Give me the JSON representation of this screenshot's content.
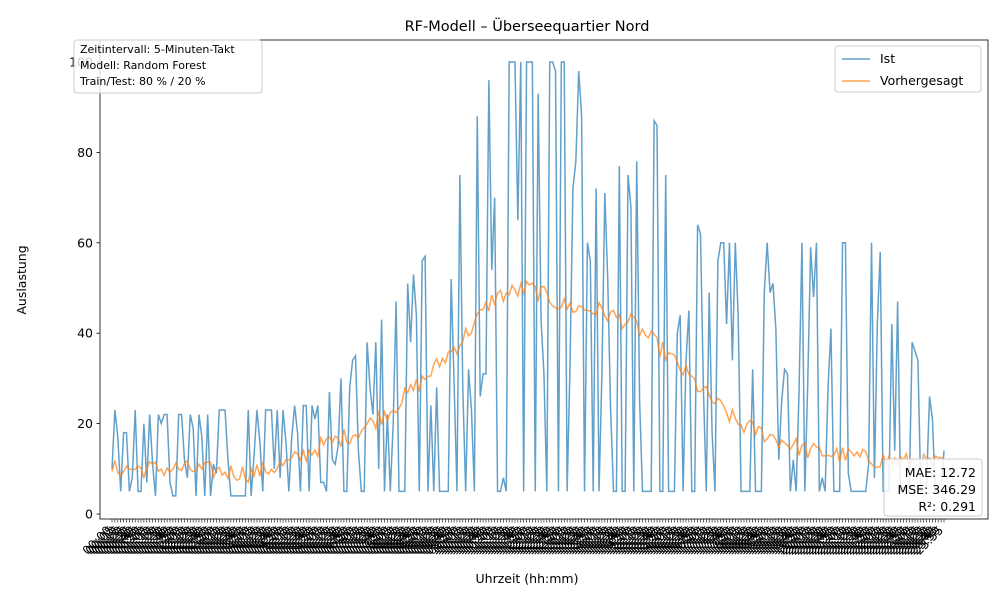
{
  "chart_data": {
    "type": "line",
    "title": "RF-Modell – Überseequartier Nord",
    "xlabel": "Uhrzeit (hh:mm)",
    "ylabel": "Auslastung",
    "ylim": [
      -1,
      105
    ],
    "yticks": [
      0,
      20,
      40,
      60,
      80,
      100
    ],
    "x_start": "00:00",
    "x_end": "23:55",
    "x_step_minutes": 5,
    "x_tick_labels_rotated_deg": 45,
    "grid": false,
    "legend_position": "top-right",
    "series": [
      {
        "name": "Ist",
        "color": "#1f77b4",
        "opacity": 0.7,
        "profile_points": [
          {
            "hour": 0,
            "low": 5,
            "high": 23
          },
          {
            "hour": 2,
            "low": 4,
            "high": 22
          },
          {
            "hour": 4,
            "low": 4,
            "high": 23
          },
          {
            "hour": 6,
            "low": 5,
            "high": 24
          },
          {
            "hour": 7,
            "low": 5,
            "high": 35
          },
          {
            "hour": 8,
            "low": 5,
            "high": 45
          },
          {
            "hour": 9,
            "low": 5,
            "high": 57
          },
          {
            "hour": 10,
            "low": 5,
            "high": 75
          },
          {
            "hour": 11,
            "low": 5,
            "high": 100
          },
          {
            "hour": 12,
            "low": 5,
            "high": 100
          },
          {
            "hour": 13,
            "low": 5,
            "high": 100
          },
          {
            "hour": 14,
            "low": 5,
            "high": 95
          },
          {
            "hour": 15,
            "low": 5,
            "high": 95
          },
          {
            "hour": 16,
            "low": 5,
            "high": 81
          },
          {
            "hour": 17,
            "low": 5,
            "high": 60
          },
          {
            "hour": 18,
            "low": 5,
            "high": 60
          },
          {
            "hour": 20,
            "low": 5,
            "high": 60
          },
          {
            "hour": 22,
            "low": 5,
            "high": 60
          },
          {
            "hour": 23.92,
            "low": 5,
            "high": 17
          }
        ]
      },
      {
        "name": "Vorhergesagt",
        "color": "#ff7f0e",
        "opacity": 0.7,
        "profile_points": [
          {
            "hour": 0,
            "value": 10
          },
          {
            "hour": 2,
            "value": 10
          },
          {
            "hour": 4,
            "value": 9
          },
          {
            "hour": 5,
            "value": 11
          },
          {
            "hour": 6,
            "value": 15
          },
          {
            "hour": 7,
            "value": 18
          },
          {
            "hour": 8,
            "value": 23
          },
          {
            "hour": 9,
            "value": 30
          },
          {
            "hour": 10,
            "value": 38
          },
          {
            "hour": 11,
            "value": 48
          },
          {
            "hour": 12,
            "value": 50
          },
          {
            "hour": 13,
            "value": 46
          },
          {
            "hour": 14,
            "value": 45
          },
          {
            "hour": 15,
            "value": 42
          },
          {
            "hour": 16,
            "value": 35
          },
          {
            "hour": 17,
            "value": 27
          },
          {
            "hour": 18,
            "value": 20
          },
          {
            "hour": 19,
            "value": 17
          },
          {
            "hour": 20,
            "value": 14
          },
          {
            "hour": 21,
            "value": 13
          },
          {
            "hour": 22,
            "value": 12
          },
          {
            "hour": 23.92,
            "value": 11
          }
        ]
      }
    ],
    "info_box": {
      "position": "top-left",
      "lines": [
        "Zeitintervall: 5-Minuten-Takt",
        "Modell: Random Forest",
        "Train/Test: 80 % / 20 %"
      ]
    },
    "metrics_box": {
      "position": "bottom-right",
      "lines": [
        "MAE: 12.72",
        "MSE: 346.29",
        "R²: 0.291"
      ]
    }
  }
}
